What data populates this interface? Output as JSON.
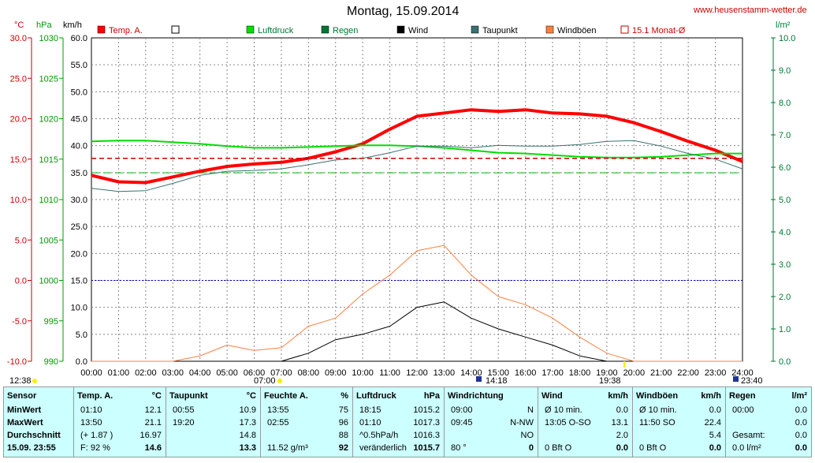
{
  "header": {
    "title": "Montag, 15.09.2014",
    "website": "www.heusenstamm-wetter.de"
  },
  "axes": {
    "temp_unit": "°C",
    "hpa_unit": "hPa",
    "kmh_unit": "km/h",
    "rain_unit": "l/m²",
    "temp_ticks": [
      "30.0",
      "25.0",
      "20.0",
      "15.0",
      "10.0",
      "5.0",
      "0.0",
      "-5.0",
      "-10.0"
    ],
    "hpa_ticks": [
      "1030",
      "1025",
      "1020",
      "1015",
      "1010",
      "1005",
      "1000",
      "995",
      "990"
    ],
    "kmh_ticks": [
      "60.0",
      "55.0",
      "50.0",
      "45.0",
      "40.0",
      "35.0",
      "30.0",
      "25.0",
      "20.0",
      "15.0",
      "10.0",
      "5.0",
      "0.0"
    ],
    "rain_ticks": [
      "10.0",
      "9.0",
      "8.0",
      "7.0",
      "6.0",
      "5.0",
      "4.0",
      "3.0",
      "2.0",
      "1.0",
      "0.0"
    ],
    "time_ticks": [
      "00:00",
      "01:00",
      "02:00",
      "03:00",
      "04:00",
      "05:00",
      "06:00",
      "07:00",
      "08:00",
      "09:00",
      "10:00",
      "11:00",
      "12:00",
      "13:00",
      "14:00",
      "15:00",
      "16:00",
      "17:00",
      "18:00",
      "19:00",
      "20:00",
      "21:00",
      "22:00",
      "23:00",
      "24:00"
    ]
  },
  "legend": [
    {
      "label": "Temp. A.",
      "color": "#ff0000",
      "style": "filled"
    },
    {
      "label": "",
      "color": "#ffffff",
      "style": "empty"
    },
    {
      "label": "Luftdruck",
      "color": "#00dd00",
      "style": "filled"
    },
    {
      "label": "Regen",
      "color": "#007733",
      "style": "filled"
    },
    {
      "label": "Wind",
      "color": "#000000",
      "style": "filled"
    },
    {
      "label": "Taupunkt",
      "color": "#3a7070",
      "style": "filled"
    },
    {
      "label": "Windböen",
      "color": "#ff7f3f",
      "style": "filled"
    },
    {
      "label": "15.1 Monat-Ø",
      "color": "#cc0000",
      "style": "outline"
    }
  ],
  "time_markers": {
    "moon_rise": "12:38",
    "sunrise": "07:00",
    "moon_transit": "14:18",
    "sunset": "19:38",
    "moon_set": "23:40"
  },
  "chart_data": {
    "type": "line",
    "title": "Montag, 15.09.2014",
    "x": [
      "00:00",
      "01:00",
      "02:00",
      "03:00",
      "04:00",
      "05:00",
      "06:00",
      "07:00",
      "08:00",
      "09:00",
      "10:00",
      "11:00",
      "12:00",
      "13:00",
      "14:00",
      "15:00",
      "16:00",
      "17:00",
      "18:00",
      "19:00",
      "20:00",
      "21:00",
      "22:00",
      "23:00",
      "24:00"
    ],
    "series": [
      {
        "name": "Temp. A.",
        "unit": "°C",
        "color": "#ff0000",
        "values": [
          13.0,
          12.2,
          12.1,
          12.8,
          13.5,
          14.1,
          14.4,
          14.6,
          15.1,
          15.9,
          16.9,
          18.7,
          20.3,
          20.7,
          21.1,
          20.9,
          21.1,
          20.7,
          20.6,
          20.3,
          19.5,
          18.4,
          17.2,
          16.1,
          14.7
        ]
      },
      {
        "name": "Luftdruck",
        "unit": "hPa",
        "color": "#00dd00",
        "values": [
          1017.2,
          1017.3,
          1017.3,
          1017.1,
          1016.9,
          1016.6,
          1016.4,
          1016.4,
          1016.5,
          1016.6,
          1016.7,
          1016.7,
          1016.6,
          1016.4,
          1016.1,
          1015.8,
          1015.7,
          1015.5,
          1015.3,
          1015.2,
          1015.2,
          1015.3,
          1015.5,
          1015.7,
          1015.7
        ]
      },
      {
        "name": "Taupunkt",
        "unit": "°C",
        "color": "#3a7070",
        "values": [
          11.4,
          11.0,
          11.1,
          12.0,
          13.0,
          13.5,
          13.6,
          13.8,
          14.3,
          14.9,
          15.1,
          15.8,
          16.6,
          16.6,
          16.4,
          16.7,
          16.6,
          16.6,
          16.8,
          17.2,
          17.3,
          16.6,
          15.7,
          15.0,
          13.8
        ]
      },
      {
        "name": "Wind",
        "unit": "km/h",
        "color": "#000000",
        "values": [
          0,
          0,
          0,
          0,
          0,
          0,
          0,
          0,
          1.5,
          4.0,
          5.0,
          6.5,
          10.0,
          11.0,
          8.0,
          6.0,
          4.5,
          3.0,
          1.0,
          0,
          0,
          0,
          0,
          0,
          0
        ]
      },
      {
        "name": "Windböen",
        "unit": "km/h",
        "color": "#ff7f3f",
        "values": [
          0,
          0,
          0,
          0,
          1.0,
          3.0,
          2.0,
          2.5,
          6.5,
          8.0,
          12.5,
          16.0,
          20.5,
          21.5,
          16.0,
          12.0,
          10.5,
          8.0,
          4.5,
          1.5,
          0,
          0,
          0,
          0,
          0
        ]
      },
      {
        "name": "15.1 Monat-Ø",
        "unit": "°C",
        "color": "#cc0000",
        "values": [
          15.1,
          15.1,
          15.1,
          15.1,
          15.1,
          15.1,
          15.1,
          15.1,
          15.1,
          15.1,
          15.1,
          15.1,
          15.1,
          15.1,
          15.1,
          15.1,
          15.1,
          15.1,
          15.1,
          15.1,
          15.1,
          15.1,
          15.1,
          15.1,
          15.1
        ]
      }
    ],
    "ylim_temp": [
      -10,
      30
    ],
    "ylim_hpa": [
      990,
      1030
    ],
    "ylim_kmh": [
      0,
      60
    ],
    "ylim_rain": [
      0,
      10
    ],
    "grid": true,
    "legend_position": "top"
  },
  "table": {
    "columns": [
      {
        "header": "Sensor",
        "unit": "",
        "rows": [
          "MinWert",
          "MaxWert",
          "Durchschnitt",
          "15.09.  23:55"
        ]
      },
      {
        "header": "Temp. A.",
        "unit": "°C",
        "rows": [
          [
            "01:10",
            "12.1"
          ],
          [
            "13:50",
            "21.1"
          ],
          [
            "(+ 1.87 )",
            "16.97"
          ],
          [
            "F: 92 %",
            "14.6"
          ]
        ]
      },
      {
        "header": "Taupunkt",
        "unit": "°C",
        "rows": [
          [
            "00:55",
            "10.9"
          ],
          [
            "19:20",
            "17.3"
          ],
          [
            "",
            "14.8"
          ],
          [
            "",
            "13.3"
          ]
        ]
      },
      {
        "header": "Feuchte A.",
        "unit": "%",
        "rows": [
          [
            "13:55",
            "75"
          ],
          [
            "02:55",
            "96"
          ],
          [
            "",
            "88"
          ],
          [
            "11.52 g/m³",
            "92"
          ]
        ]
      },
      {
        "header": "Luftdruck",
        "unit": "hPa",
        "rows": [
          [
            "18:15",
            "1015.2"
          ],
          [
            "01:10",
            "1017.3"
          ],
          [
            "^0.5hPa/h",
            "1016.3"
          ],
          [
            "veränderlich",
            "1015.7"
          ]
        ]
      },
      {
        "header": "Windrichtung",
        "unit": "",
        "rows": [
          [
            "09:00",
            "N"
          ],
          [
            "09:45",
            "N-NW"
          ],
          [
            "",
            "NO"
          ],
          [
            "80 °",
            "0"
          ]
        ]
      },
      {
        "header": "Wind",
        "unit": "km/h",
        "rows": [
          [
            "Ø 10 min.",
            "0.0"
          ],
          [
            "13:05   O-SO",
            "13.1"
          ],
          [
            "",
            "2.0"
          ],
          [
            "0 Bft O",
            "0.0"
          ]
        ]
      },
      {
        "header": "Windböen",
        "unit": "km/h",
        "rows": [
          [
            "Ø 10 min.",
            "0.0"
          ],
          [
            "11:50   SO",
            "22.4"
          ],
          [
            "",
            "5.4"
          ],
          [
            "0 Bft O",
            "0.0"
          ]
        ]
      },
      {
        "header": "Regen",
        "unit": "l/m²",
        "rows": [
          [
            "00:00",
            "0.0"
          ],
          [
            "",
            "0.0"
          ],
          [
            "Gesamt:",
            "0.0"
          ],
          [
            "0.0 l/m²",
            "0.0"
          ]
        ]
      }
    ]
  }
}
